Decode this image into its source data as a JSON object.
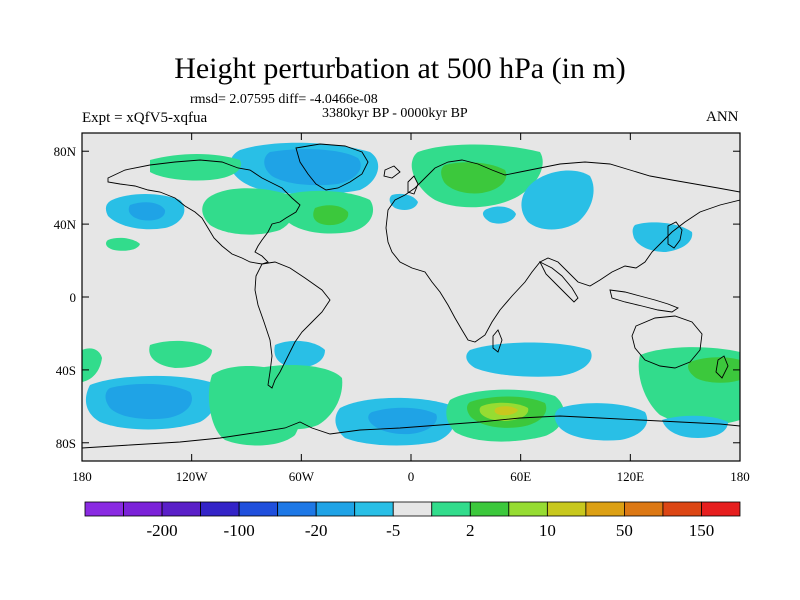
{
  "title": "Height perturbation at 500 hPa (in m)",
  "stats": "rmsd= 2.07595  diff= -4.0466e-08",
  "period": "3380kyr BP - 0000kyr BP",
  "experiment": "Expt = xQfV5-xqfua",
  "season": "ANN",
  "axes": {
    "lon_ticks": [
      {
        "value": -180,
        "label": "180"
      },
      {
        "value": -120,
        "label": "120W"
      },
      {
        "value": -60,
        "label": "60W"
      },
      {
        "value": 0,
        "label": "0"
      },
      {
        "value": 60,
        "label": "60E"
      },
      {
        "value": 120,
        "label": "120E"
      },
      {
        "value": 180,
        "label": "180"
      }
    ],
    "lat_ticks": [
      {
        "value": 80,
        "label": "80N"
      },
      {
        "value": 40,
        "label": "40N"
      },
      {
        "value": 0,
        "label": "0"
      },
      {
        "value": -40,
        "label": "40S"
      },
      {
        "value": -80,
        "label": "80S"
      }
    ],
    "lon_range": [
      -180,
      180
    ],
    "lat_range": [
      -90,
      90
    ]
  },
  "colorbar": {
    "colors": [
      "#8a2be2",
      "#7b22d8",
      "#5a1fc8",
      "#3424c8",
      "#1f4fdc",
      "#1e78e6",
      "#1fa3e6",
      "#29bfe6",
      "#e6e6e6",
      "#32dc8c",
      "#3cc83c",
      "#96dc32",
      "#c8c81e",
      "#dca014",
      "#dc7814",
      "#dc4614",
      "#e61e1e"
    ],
    "labels": [
      {
        "after_index": 1,
        "text": "-200"
      },
      {
        "after_index": 3,
        "text": "-100"
      },
      {
        "after_index": 5,
        "text": "-20"
      },
      {
        "after_index": 7,
        "text": "-5"
      },
      {
        "after_index": 9,
        "text": "2"
      },
      {
        "after_index": 11,
        "text": "10"
      },
      {
        "after_index": 13,
        "text": "50"
      },
      {
        "after_index": 15,
        "text": "150"
      }
    ]
  },
  "field_colors": {
    "background": "#e6e6e6",
    "neg_light": "#29bfe6",
    "neg_mid": "#1fa3e6",
    "pos_light": "#32dc8c",
    "pos_mid": "#3cc83c",
    "pos_high": "#96dc32",
    "pos_peak": "#c8c81e"
  }
}
